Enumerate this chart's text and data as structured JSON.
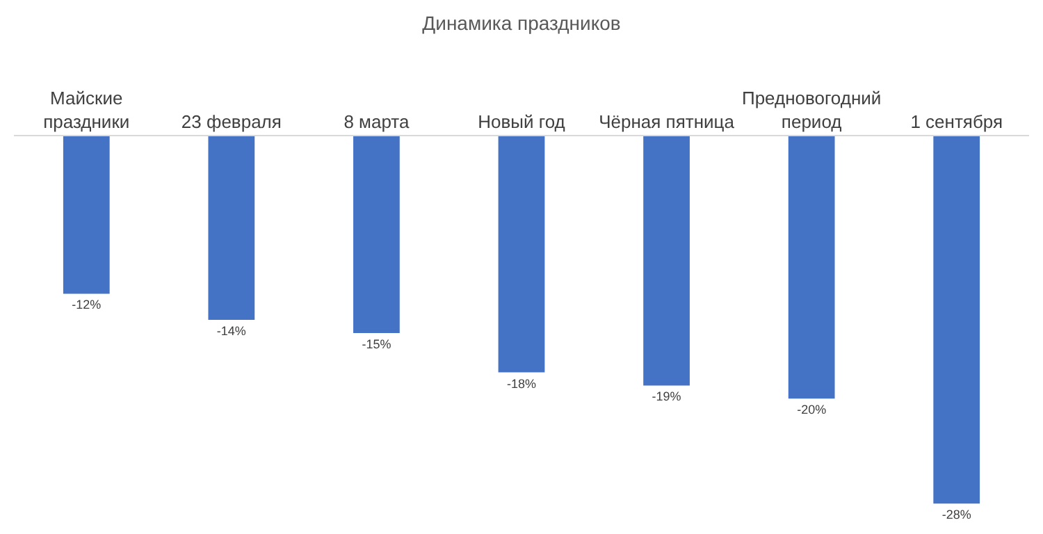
{
  "chart_data": {
    "type": "bar",
    "title": "Динамика праздников",
    "categories": [
      "Майские праздники",
      "23 февраля",
      "8 марта",
      "Новый год",
      "Чёрная пятница",
      "Предновогодний период",
      "1 сентября"
    ],
    "values": [
      -12,
      -14,
      -15,
      -18,
      -19,
      -20,
      -28
    ],
    "value_labels": [
      "-12%",
      "-14%",
      "-15%",
      "-18%",
      "-19%",
      "-20%",
      "-28%"
    ],
    "color": "#4472c4",
    "tick_labels": "x",
    "grid": false
  }
}
